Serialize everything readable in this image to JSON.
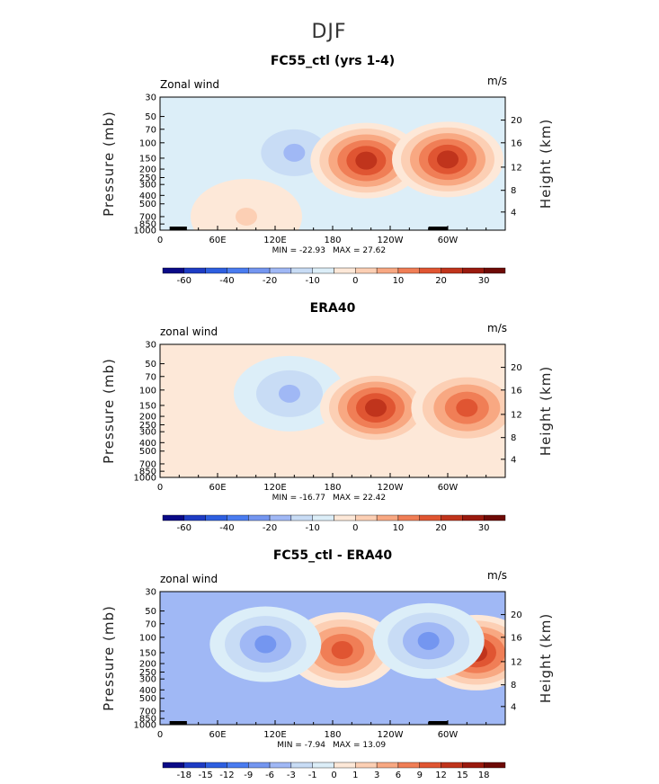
{
  "figure": {
    "title": "DJF"
  },
  "colors": {
    "palette": [
      "#0a0a87",
      "#1e3cc4",
      "#2e5fe0",
      "#4a7cf0",
      "#7496f0",
      "#a0b8f5",
      "#c8dcf5",
      "#dceef8",
      "#fde8d8",
      "#fccfb4",
      "#f8a882",
      "#f07e56",
      "#e05532",
      "#c0341c",
      "#9a1a0e",
      "#6e0a06"
    ]
  },
  "chart_data": [
    {
      "type": "contour",
      "title": "FC55_ctl (yrs 1-4)",
      "corner_left": "Zonal wind",
      "corner_right": "m/s",
      "ylabel": "Pressure (mb)",
      "ylabel_right": "Height (km)",
      "y_ticks": [
        "30",
        "50",
        "70",
        "100",
        "150",
        "200",
        "250",
        "300",
        "400",
        "500",
        "700",
        "850",
        "1000"
      ],
      "y_right_ticks": [
        "20",
        "16",
        "12",
        "8",
        "4"
      ],
      "x_ticks": [
        "0",
        "60E",
        "120E",
        "180",
        "120W",
        "60W"
      ],
      "min_label": "MIN = -22.93",
      "max_label": "MAX = 27.62",
      "min": -22.93,
      "max": 27.62,
      "colorbar_labels": [
        "-60",
        "-40",
        "-20",
        "-10",
        "0",
        "10",
        "20",
        "30"
      ],
      "colorbar_levels": [
        -70,
        -60,
        -50,
        -40,
        -30,
        -20,
        -15,
        -10,
        -5,
        0,
        5,
        10,
        15,
        20,
        25,
        30,
        35
      ],
      "blobs": [
        {
          "lon": 140,
          "p": 130,
          "value": -18,
          "level": 5
        },
        {
          "lon": 215,
          "p": 160,
          "value": 27,
          "level": 13
        },
        {
          "lon": 300,
          "p": 155,
          "value": 26,
          "level": 13
        },
        {
          "lon": 90,
          "p": 700,
          "value": 6,
          "level": 9
        }
      ]
    },
    {
      "type": "contour",
      "title": "ERA40",
      "corner_left": "zonal wind",
      "corner_right": "m/s",
      "ylabel": "Pressure (mb)",
      "ylabel_right": "Height (km)",
      "y_ticks": [
        "30",
        "50",
        "70",
        "100",
        "150",
        "200",
        "250",
        "300",
        "400",
        "500",
        "700",
        "850",
        "1000"
      ],
      "y_right_ticks": [
        "20",
        "16",
        "12",
        "8",
        "4"
      ],
      "x_ticks": [
        "0",
        "60E",
        "120E",
        "180",
        "120W",
        "60W"
      ],
      "min_label": "MIN = -16.77",
      "max_label": "MAX = 22.42",
      "min": -16.77,
      "max": 22.42,
      "colorbar_labels": [
        "-60",
        "-40",
        "-20",
        "-10",
        "0",
        "10",
        "20",
        "30"
      ],
      "colorbar_levels": [
        -70,
        -60,
        -50,
        -40,
        -30,
        -20,
        -15,
        -10,
        -5,
        0,
        5,
        10,
        15,
        20,
        25,
        30,
        35
      ],
      "blobs": [
        {
          "lon": 135,
          "p": 110,
          "value": -16,
          "level": 5
        },
        {
          "lon": 225,
          "p": 160,
          "value": 22,
          "level": 13
        },
        {
          "lon": 320,
          "p": 160,
          "value": 18,
          "level": 12
        }
      ]
    },
    {
      "type": "contour",
      "title": "FC55_ctl - ERA40",
      "corner_left": "zonal wind",
      "corner_right": "m/s",
      "ylabel": "Pressure (mb)",
      "ylabel_right": "Height (km)",
      "y_ticks": [
        "30",
        "50",
        "70",
        "100",
        "150",
        "200",
        "250",
        "300",
        "400",
        "500",
        "700",
        "850",
        "1000"
      ],
      "y_right_ticks": [
        "20",
        "16",
        "12",
        "8",
        "4"
      ],
      "x_ticks": [
        "0",
        "60E",
        "120E",
        "180",
        "120W",
        "60W"
      ],
      "min_label": "MIN = -7.94",
      "max_label": "MAX = 13.09",
      "min": -7.94,
      "max": 13.09,
      "colorbar_labels": [
        "-18",
        "-15",
        "-12",
        "-9",
        "-6",
        "-3",
        "-1",
        "0",
        "1",
        "3",
        "6",
        "9",
        "12",
        "15",
        "18"
      ],
      "colorbar_levels": [
        -21,
        -18,
        -15,
        -12,
        -9,
        -6,
        -3,
        -1,
        0,
        1,
        3,
        6,
        9,
        12,
        15,
        18,
        21
      ],
      "blobs": [
        {
          "lon": 190,
          "p": 140,
          "value": 10,
          "level": 12
        },
        {
          "lon": 330,
          "p": 150,
          "value": 12,
          "level": 13
        },
        {
          "lon": 110,
          "p": 120,
          "value": -6,
          "level": 4
        },
        {
          "lon": 280,
          "p": 110,
          "value": -5,
          "level": 4
        }
      ]
    }
  ]
}
